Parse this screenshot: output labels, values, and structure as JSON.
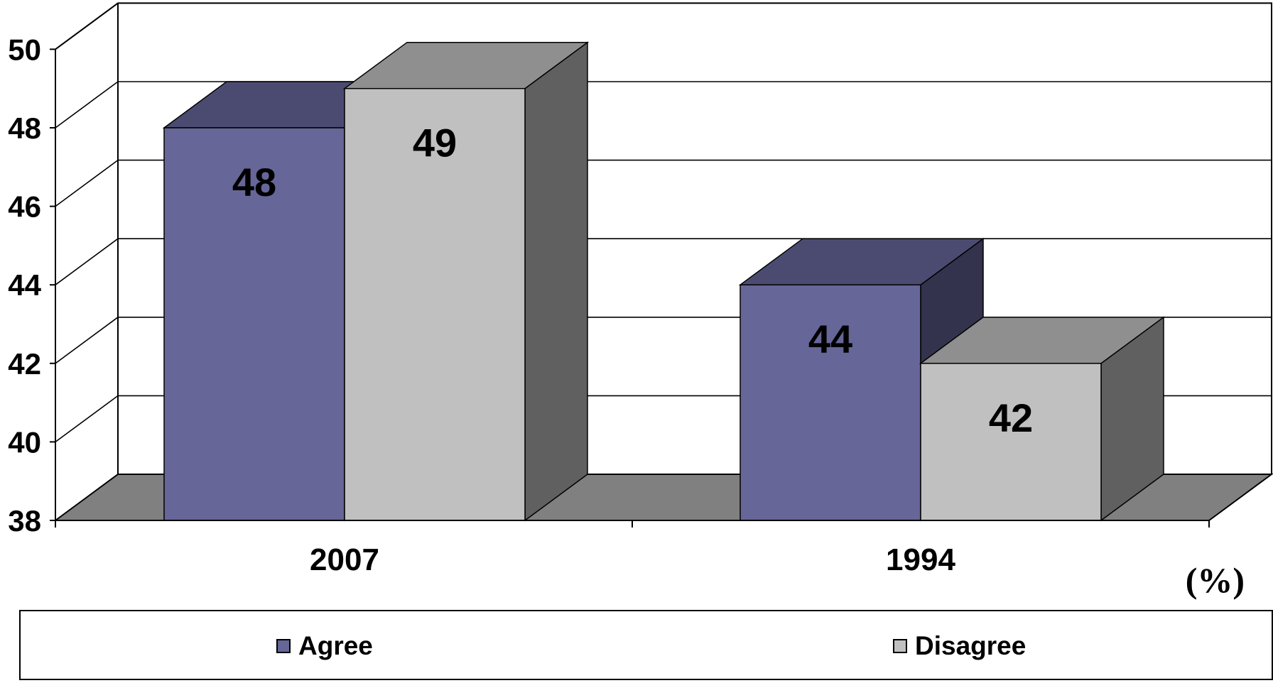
{
  "chart_data": {
    "type": "bar",
    "categories": [
      "2007",
      "1994"
    ],
    "series": [
      {
        "name": "Agree",
        "values": [
          48,
          44
        ],
        "color": "#666699",
        "top_color": "#4b4b72",
        "side_color": "#33334d"
      },
      {
        "name": "Disagree",
        "values": [
          49,
          42
        ],
        "color": "#c0c0c0",
        "top_color": "#8f8f8f",
        "side_color": "#606060"
      }
    ],
    "ylim": [
      38,
      50
    ],
    "yticks": [
      "38",
      "40",
      "42",
      "44",
      "46",
      "48",
      "50"
    ],
    "unit": "(%)",
    "grid": true,
    "legend": "bottom",
    "floor_color": "#808080"
  }
}
